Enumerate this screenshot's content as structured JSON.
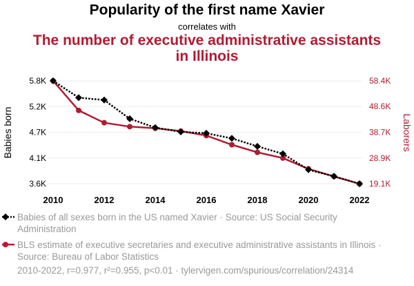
{
  "header": {
    "title": "Popularity of the first name Xavier",
    "connector": "correlates with",
    "subtitle": "The number of executive administrative assistants in Illinois"
  },
  "colors": {
    "series1": "#000000",
    "series2": "#b01c32",
    "grid": "#eeeeee",
    "muted": "#999999"
  },
  "chart_data": {
    "type": "line",
    "x": [
      2010,
      2011,
      2012,
      2013,
      2014,
      2015,
      2016,
      2017,
      2018,
      2019,
      2020,
      2021,
      2022
    ],
    "xticks": [
      "2010",
      "2012",
      "2014",
      "2016",
      "2018",
      "2020",
      "2022"
    ],
    "xlim": [
      2010,
      2022
    ],
    "left_axis": {
      "label": "Babies born",
      "ticks": [
        "5.8K",
        "5.2K",
        "4.7K",
        "4.1K",
        "3.6K"
      ],
      "tick_values": [
        5800,
        5250,
        4700,
        4150,
        3600
      ],
      "ylim": [
        3600,
        5800
      ]
    },
    "right_axis": {
      "label": "Laborers",
      "ticks": [
        "58.4K",
        "48.6K",
        "38.7K",
        "28.9K",
        "19.1K"
      ],
      "tick_values": [
        58400,
        48600,
        38700,
        28900,
        19100
      ],
      "ylim": [
        19100,
        58400
      ]
    },
    "series": [
      {
        "name": "Babies of all sexes born in the US named Xavier · Source: US Social Security Administration",
        "axis": "left",
        "style": "dotted",
        "marker": "diamond",
        "values": [
          5800,
          5440,
          5390,
          4990,
          4800,
          4710,
          4680,
          4570,
          4400,
          4240,
          3900,
          3760,
          3600
        ]
      },
      {
        "name": "BLS estimate of executive secretaries and executive administrative assistants in Illinois · Source: Bureau of Labor Statistics",
        "axis": "right",
        "style": "solid",
        "marker": "circle",
        "values": [
          58400,
          47100,
          42400,
          40900,
          40300,
          39200,
          37500,
          34000,
          31100,
          28900,
          24800,
          21900,
          19100
        ]
      }
    ]
  },
  "footer": {
    "stats": "2010-2022, r=0.977, r²=0.955, p<0.01 · tylervigen.com/spurious/correlation/24314"
  }
}
